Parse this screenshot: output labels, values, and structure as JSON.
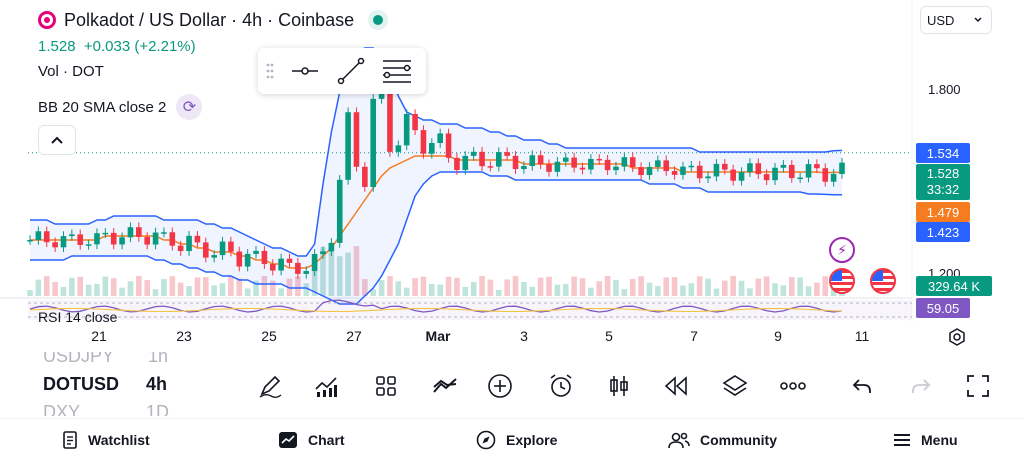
{
  "header": {
    "symbol_title": "Polkadot / US Dollar · 4h · Coinbase",
    "last_price": "1.528",
    "change": "+0.033 (+2.21%)",
    "volume_label": "Vol · DOT",
    "bb_label": "BB 20 SMA close 2",
    "currency": "USD"
  },
  "price_axis": {
    "ticks": [
      "1.800",
      "1.200"
    ],
    "tags": {
      "bb_upper": "1.534",
      "last": "1.528",
      "countdown": "33:32",
      "sma": "1.479",
      "bb_lower": "1.423",
      "volume": "329.64 K",
      "rsi": "59.05"
    }
  },
  "rsi_label": "RSI 14 close",
  "time_axis": [
    "21",
    "23",
    "25",
    "27",
    "Mar",
    "3",
    "5",
    "7",
    "9",
    "11"
  ],
  "symbol_picker": {
    "above": "USDJPY",
    "current": "DOTUSD",
    "below": "DXY",
    "interval_above": "1h",
    "interval_current": "4h",
    "interval_below": "1D"
  },
  "bottom_nav": [
    {
      "label": "Watchlist",
      "icon": "watchlist-icon"
    },
    {
      "label": "Chart",
      "icon": "chart-icon"
    },
    {
      "label": "Explore",
      "icon": "explore-icon"
    },
    {
      "label": "Community",
      "icon": "community-icon"
    },
    {
      "label": "Menu",
      "icon": "menu-icon"
    }
  ],
  "colors": {
    "up": "#089981",
    "down": "#f23645",
    "bb_band": "#2962ff",
    "sma": "#f57c1f",
    "rsi": "#7e57c2",
    "volume_up": "#bfe4dc",
    "volume_down": "#f8c7cc"
  },
  "chart_data": {
    "type": "candlestick",
    "pair": "DOTUSD",
    "interval": "4h",
    "ylim": [
      1.17,
      1.83
    ],
    "bb_upper": [
      1.36,
      1.36,
      1.36,
      1.35,
      1.35,
      1.35,
      1.35,
      1.35,
      1.36,
      1.36,
      1.37,
      1.37,
      1.37,
      1.37,
      1.37,
      1.37,
      1.36,
      1.36,
      1.36,
      1.36,
      1.36,
      1.35,
      1.35,
      1.34,
      1.34,
      1.33,
      1.32,
      1.31,
      1.3,
      1.29,
      1.29,
      1.28,
      1.27,
      1.27,
      1.3,
      1.45,
      1.58,
      1.68,
      1.75,
      1.78,
      1.79,
      1.79,
      1.77,
      1.73,
      1.67,
      1.63,
      1.62,
      1.61,
      1.61,
      1.6,
      1.6,
      1.6,
      1.59,
      1.59,
      1.59,
      1.58,
      1.58,
      1.57,
      1.57,
      1.56,
      1.56,
      1.56,
      1.55,
      1.55,
      1.54,
      1.54,
      1.54,
      1.54,
      1.54,
      1.54,
      1.54,
      1.54,
      1.54,
      1.54,
      1.54,
      1.54,
      1.54,
      1.54,
      1.54,
      1.54,
      1.53,
      1.53,
      1.53,
      1.53,
      1.53,
      1.53,
      1.53,
      1.53,
      1.53,
      1.53,
      1.53,
      1.53,
      1.53,
      1.53,
      1.53,
      1.53,
      1.533,
      1.534
    ],
    "bb_lower": [
      1.26,
      1.26,
      1.26,
      1.26,
      1.26,
      1.27,
      1.27,
      1.27,
      1.27,
      1.27,
      1.27,
      1.27,
      1.27,
      1.27,
      1.27,
      1.26,
      1.26,
      1.25,
      1.25,
      1.24,
      1.24,
      1.23,
      1.23,
      1.22,
      1.22,
      1.21,
      1.21,
      1.2,
      1.2,
      1.2,
      1.2,
      1.19,
      1.19,
      1.19,
      1.18,
      1.17,
      1.16,
      1.15,
      1.15,
      1.15,
      1.17,
      1.19,
      1.22,
      1.26,
      1.3,
      1.36,
      1.42,
      1.45,
      1.47,
      1.48,
      1.48,
      1.48,
      1.48,
      1.48,
      1.48,
      1.47,
      1.47,
      1.47,
      1.46,
      1.46,
      1.46,
      1.46,
      1.46,
      1.46,
      1.46,
      1.46,
      1.46,
      1.46,
      1.46,
      1.46,
      1.46,
      1.46,
      1.46,
      1.46,
      1.45,
      1.45,
      1.45,
      1.45,
      1.44,
      1.44,
      1.44,
      1.43,
      1.43,
      1.43,
      1.43,
      1.43,
      1.43,
      1.43,
      1.43,
      1.43,
      1.43,
      1.43,
      1.43,
      1.425,
      1.425,
      1.424,
      1.423,
      1.423
    ],
    "sma": [
      1.31,
      1.31,
      1.31,
      1.31,
      1.31,
      1.31,
      1.31,
      1.31,
      1.31,
      1.32,
      1.32,
      1.32,
      1.32,
      1.32,
      1.32,
      1.32,
      1.31,
      1.31,
      1.3,
      1.3,
      1.29,
      1.29,
      1.28,
      1.28,
      1.28,
      1.27,
      1.27,
      1.26,
      1.26,
      1.25,
      1.25,
      1.24,
      1.24,
      1.24,
      1.25,
      1.27,
      1.29,
      1.32,
      1.35,
      1.38,
      1.41,
      1.44,
      1.47,
      1.49,
      1.5,
      1.51,
      1.52,
      1.52,
      1.52,
      1.52,
      1.52,
      1.51,
      1.51,
      1.51,
      1.51,
      1.51,
      1.51,
      1.51,
      1.51,
      1.5,
      1.5,
      1.5,
      1.5,
      1.5,
      1.5,
      1.5,
      1.5,
      1.5,
      1.5,
      1.5,
      1.5,
      1.5,
      1.49,
      1.49,
      1.49,
      1.49,
      1.49,
      1.49,
      1.48,
      1.48,
      1.48,
      1.48,
      1.48,
      1.48,
      1.48,
      1.48,
      1.48,
      1.48,
      1.48,
      1.48,
      1.48,
      1.48,
      1.48,
      1.48,
      1.48,
      1.478,
      1.479,
      1.479
    ]
  }
}
